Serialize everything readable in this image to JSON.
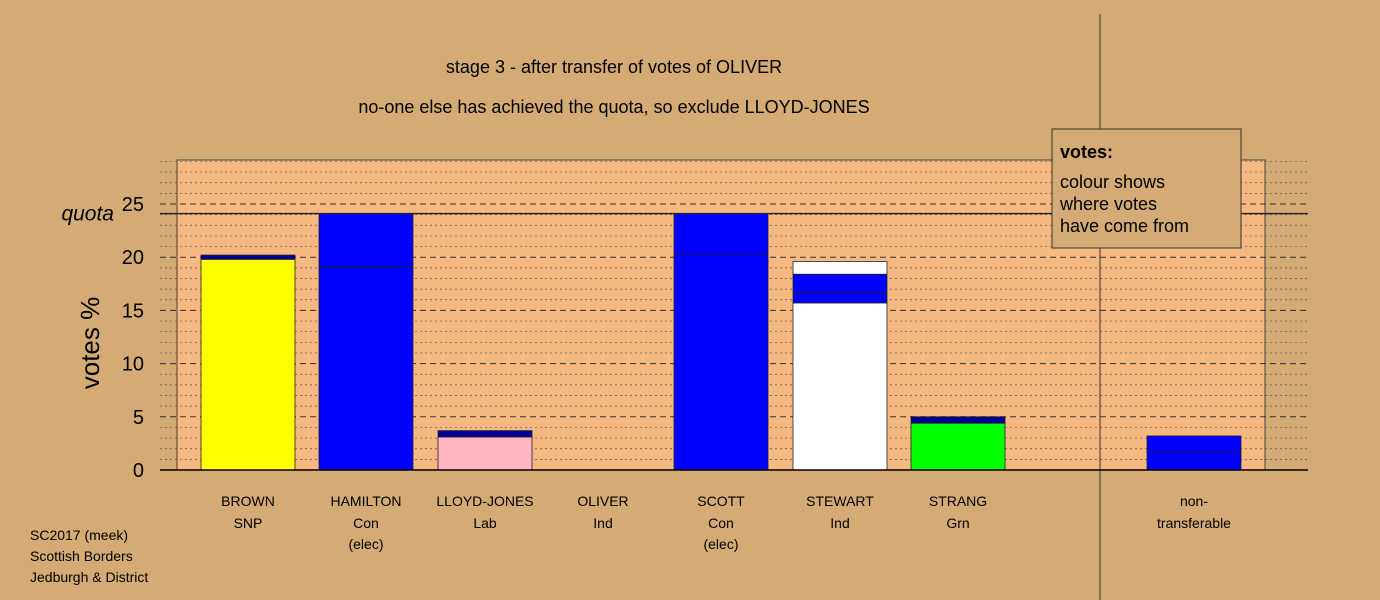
{
  "chart_data": {
    "type": "bar",
    "title": "stage 3 - after transfer of votes of OLIVER",
    "subtitle": "no-one else has achieved the quota, so exclude LLOYD-JONES",
    "ylabel": "votes %",
    "ylim": [
      0,
      30
    ],
    "yticks": [
      0,
      5,
      10,
      15,
      20,
      25
    ],
    "quota": {
      "label": "quota",
      "value": 24.1
    },
    "grid": true,
    "colors": {
      "background": "#d4aa75",
      "plot": "#f5b880",
      "Con": "#0000ff",
      "SNP": "#ffff00",
      "Lab": "#ffb6c1",
      "Ind": "#ffffff",
      "Grn": "#00ff00",
      "transfer": "#000099"
    },
    "categories": [
      {
        "name": "BROWN",
        "party": "SNP",
        "note": "",
        "segments": [
          {
            "from": 0,
            "to": 19.8,
            "color": "#ffff00"
          },
          {
            "from": 19.8,
            "to": 20.2,
            "color": "#000099"
          }
        ]
      },
      {
        "name": "HAMILTON",
        "party": "Con",
        "note": "(elec)",
        "segments": [
          {
            "from": 0,
            "to": 19.1,
            "color": "#0000ff"
          },
          {
            "from": 19.1,
            "to": 24.1,
            "color": "#0000ff"
          }
        ]
      },
      {
        "name": "LLOYD-JONES",
        "party": "Lab",
        "note": "",
        "segments": [
          {
            "from": 0,
            "to": 3.1,
            "color": "#ffb6c1"
          },
          {
            "from": 3.1,
            "to": 3.7,
            "color": "#000099"
          }
        ]
      },
      {
        "name": "OLIVER",
        "party": "Ind",
        "note": "",
        "segments": []
      },
      {
        "name": "SCOTT",
        "party": "Con",
        "note": "(elec)",
        "segments": [
          {
            "from": 0,
            "to": 20.3,
            "color": "#0000ff"
          },
          {
            "from": 20.3,
            "to": 24.1,
            "color": "#0000ff"
          }
        ]
      },
      {
        "name": "STEWART",
        "party": "Ind",
        "note": "",
        "segments": [
          {
            "from": 0,
            "to": 15.7,
            "color": "#ffffff"
          },
          {
            "from": 15.7,
            "to": 16.7,
            "color": "#0000ff"
          },
          {
            "from": 16.7,
            "to": 18.4,
            "color": "#0000ff"
          },
          {
            "from": 18.4,
            "to": 19.6,
            "color": "#ffffff"
          }
        ]
      },
      {
        "name": "STRANG",
        "party": "Grn",
        "note": "",
        "segments": [
          {
            "from": 0,
            "to": 4.4,
            "color": "#00ff00"
          },
          {
            "from": 4.4,
            "to": 5.0,
            "color": "#000099"
          }
        ]
      }
    ],
    "nontransferable": {
      "label_line1": "non-",
      "label_line2": "transferable",
      "segments": [
        {
          "from": 0,
          "to": 1.7,
          "color": "#0000ff"
        },
        {
          "from": 1.7,
          "to": 3.2,
          "color": "#0000ff"
        }
      ]
    },
    "legend": {
      "position": "top-right",
      "title": "votes:",
      "lines": [
        "colour shows",
        "where votes",
        "have come from"
      ]
    }
  },
  "footer": {
    "line1": "SC2017 (meek)",
    "line2": "Scottish Borders",
    "line3": "Jedburgh & District"
  }
}
